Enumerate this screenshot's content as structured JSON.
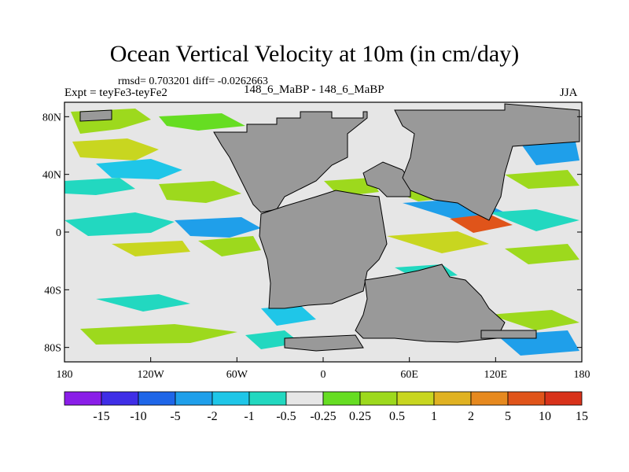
{
  "title": "Ocean Vertical Velocity at 10m (in cm/day)",
  "stats_text": "rmsd= 0.703201 diff= -0.0262663",
  "experiment_label": "Expt = teyFe3-teyFe2",
  "case_label": "148_6_MaBP - 148_6_MaBP",
  "season_label": "JJA",
  "colors": {
    "land": "#999999",
    "near_zero": "#e6e6e6",
    "levels": [
      "#8a1ee8",
      "#3f2ee6",
      "#1f66e8",
      "#1f9fea",
      "#1fc6e8",
      "#22d8c0",
      "#e6e6e6",
      "#66dd22",
      "#9dd91d",
      "#c8d620",
      "#e0b222",
      "#e6891f",
      "#e0541a",
      "#d8321a"
    ]
  },
  "map": {
    "lat_ticks": [
      {
        "lat": 80,
        "label": "80N"
      },
      {
        "lat": 40,
        "label": "40N"
      },
      {
        "lat": 0,
        "label": "0"
      },
      {
        "lat": -40,
        "label": "40S"
      },
      {
        "lat": -80,
        "label": "80S"
      }
    ],
    "lon_ticks": [
      {
        "lon": -180,
        "label": "180"
      },
      {
        "lon": -120,
        "label": "120W"
      },
      {
        "lon": -60,
        "label": "60W"
      },
      {
        "lon": 0,
        "label": "0"
      },
      {
        "lon": 60,
        "label": "60E"
      },
      {
        "lon": 120,
        "label": "120E"
      },
      {
        "lon": 180,
        "label": "180"
      }
    ],
    "lat_range": [
      -90,
      90
    ],
    "lon_range": [
      -180,
      180
    ]
  },
  "colorbar": {
    "labels": [
      "-15",
      "-10",
      "-5",
      "-2",
      "-1",
      "-0.5",
      "-0.25",
      "0.25",
      "0.5",
      "1",
      "2",
      "5",
      "10",
      "15"
    ]
  }
}
